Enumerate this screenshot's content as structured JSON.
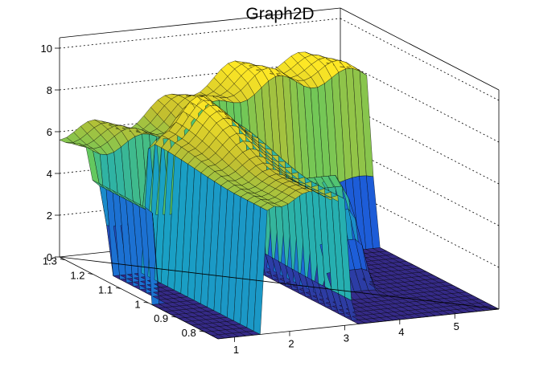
{
  "chart_data": {
    "type": "surface",
    "title": "Graph2D",
    "x_ticks": [
      "1",
      "2",
      "3",
      "4",
      "5"
    ],
    "y_ticks": [
      "0.8",
      "0.9",
      "1",
      "1.1",
      "1.2",
      "1.3"
    ],
    "z_ticks": [
      "0",
      "2",
      "4",
      "6",
      "8",
      "10"
    ],
    "xlim": [
      0.7,
      5.8
    ],
    "ylim": [
      0.75,
      1.32
    ],
    "zlim": [
      0,
      10.5
    ],
    "grid": true,
    "colormap": [
      "#352a87",
      "#1d5dd8",
      "#1aa9c1",
      "#5ec962",
      "#c4bf2f",
      "#fde725"
    ],
    "surface": {
      "description_values": "z(x,y) approx",
      "front_plateau_x": [
        1.55,
        3.1
      ],
      "front_plateau_y": [
        0.75,
        1.2
      ],
      "front_plateau_z": 6.3,
      "front_plateau_peak_z": 8.1,
      "back_ridge_y": [
        1.2,
        1.32
      ],
      "back_ridge_z": 6.0,
      "back_ridge_peak_z": 8.2,
      "right_ridge_x": [
        3.6,
        4.4
      ],
      "right_ridge_z": 6.0,
      "floor_z": 0
    }
  }
}
